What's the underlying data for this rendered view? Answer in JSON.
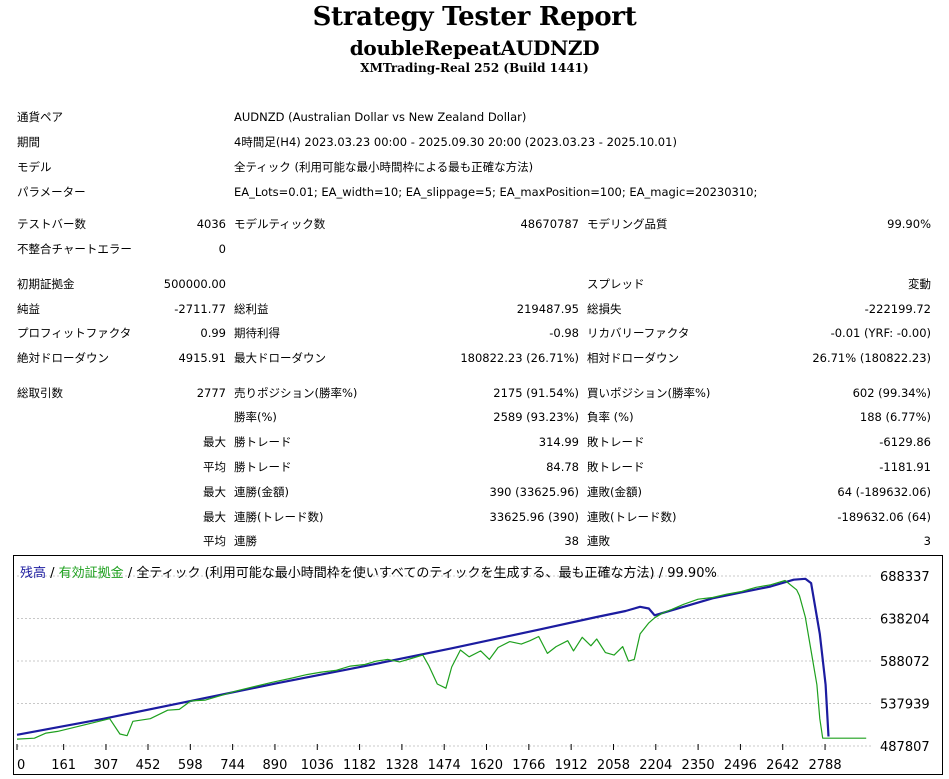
{
  "header": {
    "title": "Strategy Tester Report",
    "ea_name": "doubleRepeatAUDNZD",
    "server": "XMTrading-Real 252 (Build 1441)"
  },
  "info": [
    {
      "label": "通貨ペア",
      "value": "AUDNZD (Australian Dollar vs New Zealand Dollar)"
    },
    {
      "label": "期間",
      "value": "4時間足(H4) 2023.03.23 00:00 - 2025.09.30 20:00 (2023.03.23 - 2025.10.01)"
    },
    {
      "label": "モデル",
      "value": "全ティック (利用可能な最小時間枠による最も正確な方法)"
    },
    {
      "label": "パラメーター",
      "value": "EA_Lots=0.01; EA_width=10; EA_slippage=5; EA_maxPosition=100; EA_magic=20230310;"
    }
  ],
  "stats": {
    "bars_label": "テストバー数",
    "bars_value": "4036",
    "ticks_label": "モデルティック数",
    "ticks_value": "48670787",
    "quality_label": "モデリング品質",
    "quality_value": "99.90%",
    "mismatch_label": "不整合チャートエラー",
    "mismatch_value": "0",
    "deposit_label": "初期証拠金",
    "deposit_value": "500000.00",
    "spread_label": "スプレッド",
    "spread_value": "変動",
    "net_label": "純益",
    "net_value": "-2711.77",
    "gross_profit_label": "総利益",
    "gross_profit_value": "219487.95",
    "gross_loss_label": "総損失",
    "gross_loss_value": "-222199.72",
    "pf_label": "プロフィットファクタ",
    "pf_value": "0.99",
    "payoff_label": "期待利得",
    "payoff_value": "-0.98",
    "rf_label": "リカバリーファクタ",
    "rf_value": "-0.01 (YRF: -0.00)",
    "abs_dd_label": "絶対ドローダウン",
    "abs_dd_value": "4915.91",
    "max_dd_label": "最大ドローダウン",
    "max_dd_value": "180822.23 (26.71%)",
    "rel_dd_label": "相対ドローダウン",
    "rel_dd_value": "26.71% (180822.23)",
    "trades_label": "総取引数",
    "trades_value": "2777",
    "short_label": "売りポジション(勝率%)",
    "short_value": "2175 (91.54%)",
    "long_label": "買いポジション(勝率%)",
    "long_value": "602 (99.34%)",
    "win_label": "勝率(%)",
    "win_value": "2589 (93.23%)",
    "loss_label": "負率 (%)",
    "loss_value": "188 (6.77%)",
    "max_prefix": "最大",
    "avg_prefix": "平均",
    "lw_label": "勝トレード",
    "lw_value": "314.99",
    "ll_label": "敗トレード",
    "ll_value": "-6129.86",
    "aw_label": "勝トレード",
    "aw_value": "84.78",
    "al_label": "敗トレード",
    "al_value": "-1181.91",
    "mcw_label": "連勝(金額)",
    "mcw_value": "390 (33625.96)",
    "mcl_label": "連敗(金額)",
    "mcl_value": "64 (-189632.06)",
    "mcp_label": "連勝(トレード数)",
    "mcp_value": "33625.96 (390)",
    "mcpl_label": "連敗(トレード数)",
    "mcpl_value": "-189632.06 (64)",
    "acw_label": "連勝",
    "acw_value": "38",
    "acl_label": "連敗",
    "acl_value": "3"
  },
  "legend": {
    "balance": "残高",
    "sep1": " / ",
    "equity": "有効証拠金",
    "rest": " / 全ティック (利用可能な最小時間枠を使いすべてのティックを生成する、最も正確な方法) / 99.90%"
  },
  "chart_data": {
    "type": "line",
    "xlabel": "",
    "ylabel": "",
    "x_ticks": [
      "0",
      "161",
      "307",
      "452",
      "598",
      "744",
      "890",
      "1036",
      "1182",
      "1328",
      "1474",
      "1620",
      "1766",
      "1912",
      "2058",
      "2204",
      "2350",
      "2496",
      "2642",
      "2788"
    ],
    "y_ticks": [
      "688337",
      "638204",
      "588072",
      "537939",
      "487807"
    ],
    "xlim": [
      0,
      2950
    ],
    "ylim": [
      487807,
      688337
    ],
    "colors": {
      "balance": "#1c1ca0",
      "equity": "#1ea01e"
    },
    "series": [
      {
        "name": "残高",
        "x": [
          0,
          300,
          600,
          900,
          1200,
          1500,
          1800,
          2000,
          2100,
          2150,
          2180,
          2200,
          2400,
          2600,
          2680,
          2720,
          2740,
          2770,
          2790,
          2800
        ],
        "values": [
          501000,
          520000,
          541000,
          562000,
          582000,
          603000,
          625000,
          640000,
          647000,
          652000,
          650000,
          642000,
          662000,
          676000,
          684000,
          685000,
          680000,
          620000,
          560000,
          499000
        ]
      },
      {
        "name": "有効証拠金",
        "x": [
          0,
          60,
          100,
          140,
          200,
          260,
          320,
          355,
          380,
          400,
          460,
          520,
          560,
          600,
          650,
          700,
          760,
          820,
          880,
          950,
          1000,
          1050,
          1100,
          1150,
          1200,
          1240,
          1280,
          1320,
          1360,
          1400,
          1420,
          1450,
          1480,
          1500,
          1530,
          1560,
          1600,
          1630,
          1660,
          1700,
          1740,
          1770,
          1800,
          1830,
          1860,
          1900,
          1920,
          1950,
          1980,
          2000,
          2030,
          2060,
          2090,
          2110,
          2130,
          2150,
          2180,
          2200,
          2230,
          2260,
          2300,
          2350,
          2400,
          2450,
          2500,
          2550,
          2600,
          2650,
          2690,
          2700,
          2720,
          2740,
          2760,
          2770,
          2780,
          2800,
          2850,
          2930
        ],
        "values": [
          496000,
          497000,
          503000,
          505000,
          510000,
          515000,
          520000,
          502000,
          500000,
          517000,
          520000,
          530000,
          531000,
          541000,
          542000,
          547000,
          553000,
          558000,
          563000,
          568000,
          572000,
          575000,
          577000,
          582000,
          584000,
          588000,
          590000,
          587000,
          591000,
          595000,
          583000,
          561000,
          556000,
          581000,
          601000,
          593000,
          600000,
          590000,
          604000,
          611000,
          608000,
          612000,
          617000,
          597000,
          605000,
          612000,
          600000,
          616000,
          606000,
          614000,
          598000,
          595000,
          605000,
          588000,
          590000,
          620000,
          633000,
          639000,
          645000,
          649000,
          655000,
          661000,
          663000,
          667000,
          670000,
          675000,
          678000,
          683000,
          672000,
          665000,
          640000,
          600000,
          560000,
          520000,
          497000,
          497000,
          497000,
          497000
        ]
      }
    ]
  }
}
